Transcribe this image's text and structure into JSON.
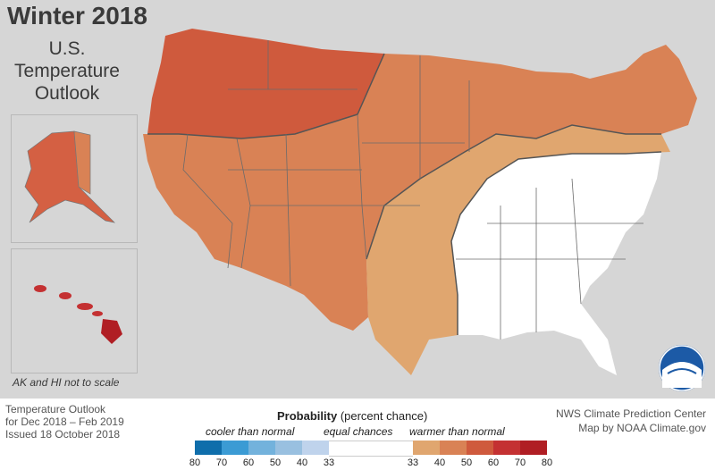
{
  "header": {
    "title": "Winter 2018",
    "subtitle_lines": [
      "U.S.",
      "Temperature",
      "Outlook"
    ]
  },
  "inset_note": "AK and HI not to scale",
  "footer": {
    "left_lines": [
      "Temperature Outlook",
      "for Dec 2018 – Feb 2019",
      "Issued 18 October 2018"
    ],
    "right_lines": [
      "NWS Climate Prediction Center",
      "Map by NOAA Climate.gov"
    ]
  },
  "legend": {
    "title_bold": "Probability",
    "title_rest": "(percent chance)",
    "cooler_label": "cooler than normal",
    "equal_label": "equal chances",
    "warmer_label": "warmer than normal",
    "ticks": [
      "80",
      "70",
      "60",
      "50",
      "40",
      "33",
      "33",
      "40",
      "50",
      "60",
      "70",
      "80"
    ],
    "cool_colors": [
      "#0f6eab",
      "#3b9bd4",
      "#73b2dc",
      "#99c0e0",
      "#bfd3ec"
    ],
    "equal_color": "#ffffff",
    "warm_colors": [
      "#e0a66f",
      "#d98255",
      "#cf5a3d",
      "#c43132",
      "#b01e24"
    ]
  },
  "map_colors": {
    "background_land": "#d6d6d6",
    "water": "#c9cfd6",
    "warm_40": "#e0a66f",
    "warm_50": "#d98255",
    "warm_60": "#cf5a3d",
    "warm_70": "#c43132",
    "equal_chances": "#ffffff"
  },
  "logo": {
    "name": "NOAA",
    "text": "NOAA"
  }
}
